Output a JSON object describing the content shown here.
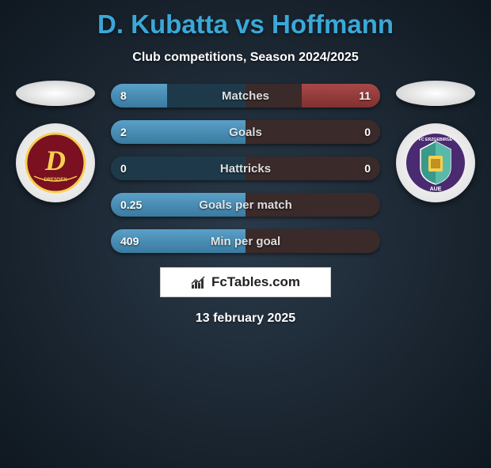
{
  "title": "D. Kubatta vs Hoffmann",
  "subtitle": "Club competitions, Season 2024/2025",
  "date": "13 february 2025",
  "brand": "FcTables.com",
  "colors": {
    "title": "#3aa8d8",
    "bar_left_highlight": "#5aa0c8",
    "bar_left_dim": "#1e3a4a",
    "bar_right_highlight": "#a84848",
    "bar_right_dim": "#3a2a2a"
  },
  "bars": [
    {
      "label": "Matches",
      "left": "8",
      "right": "11",
      "left_frac": 0.42,
      "right_frac": 0.58
    },
    {
      "label": "Goals",
      "left": "2",
      "right": "0",
      "left_frac": 1.0,
      "right_frac": 0.0
    },
    {
      "label": "Hattricks",
      "left": "0",
      "right": "0",
      "left_frac": 0.0,
      "right_frac": 0.0
    },
    {
      "label": "Goals per match",
      "left": "0.25",
      "right": "",
      "left_frac": 1.0,
      "right_frac": 0.0
    },
    {
      "label": "Min per goal",
      "left": "409",
      "right": "",
      "left_frac": 1.0,
      "right_frac": 0.0
    }
  ],
  "left_team": {
    "logo_bg": "#7a1020",
    "logo_letter": "D",
    "logo_sub": "DRESDEN",
    "logo_letter_color": "#f5d050"
  },
  "right_team": {
    "logo_bg": "#4a2a70",
    "logo_inner": "#3a9a8a",
    "logo_text_top": "FC ERZGEBIRGE",
    "logo_text_bottom": "AUE"
  }
}
